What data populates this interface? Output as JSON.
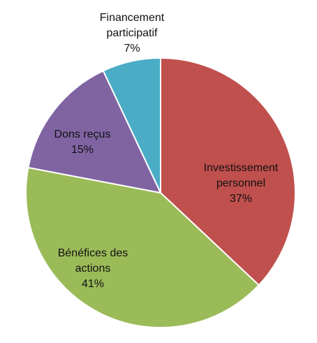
{
  "chart_data": {
    "type": "pie",
    "title": "",
    "legend": "none",
    "slices": [
      {
        "label_lines": [
          "Investissement",
          "personnel"
        ],
        "percent_label": "37%",
        "value": 37,
        "color": "#C0504D"
      },
      {
        "label_lines": [
          "Bénéfices des",
          "actions"
        ],
        "percent_label": "41%",
        "value": 41,
        "color": "#9BBB59"
      },
      {
        "label_lines": [
          "Dons reçus"
        ],
        "percent_label": "15%",
        "value": 15,
        "color": "#8064A2"
      },
      {
        "label_lines": [
          "Financement",
          "participatif"
        ],
        "percent_label": "7%",
        "value": 7,
        "color": "#4BACC6"
      }
    ]
  }
}
